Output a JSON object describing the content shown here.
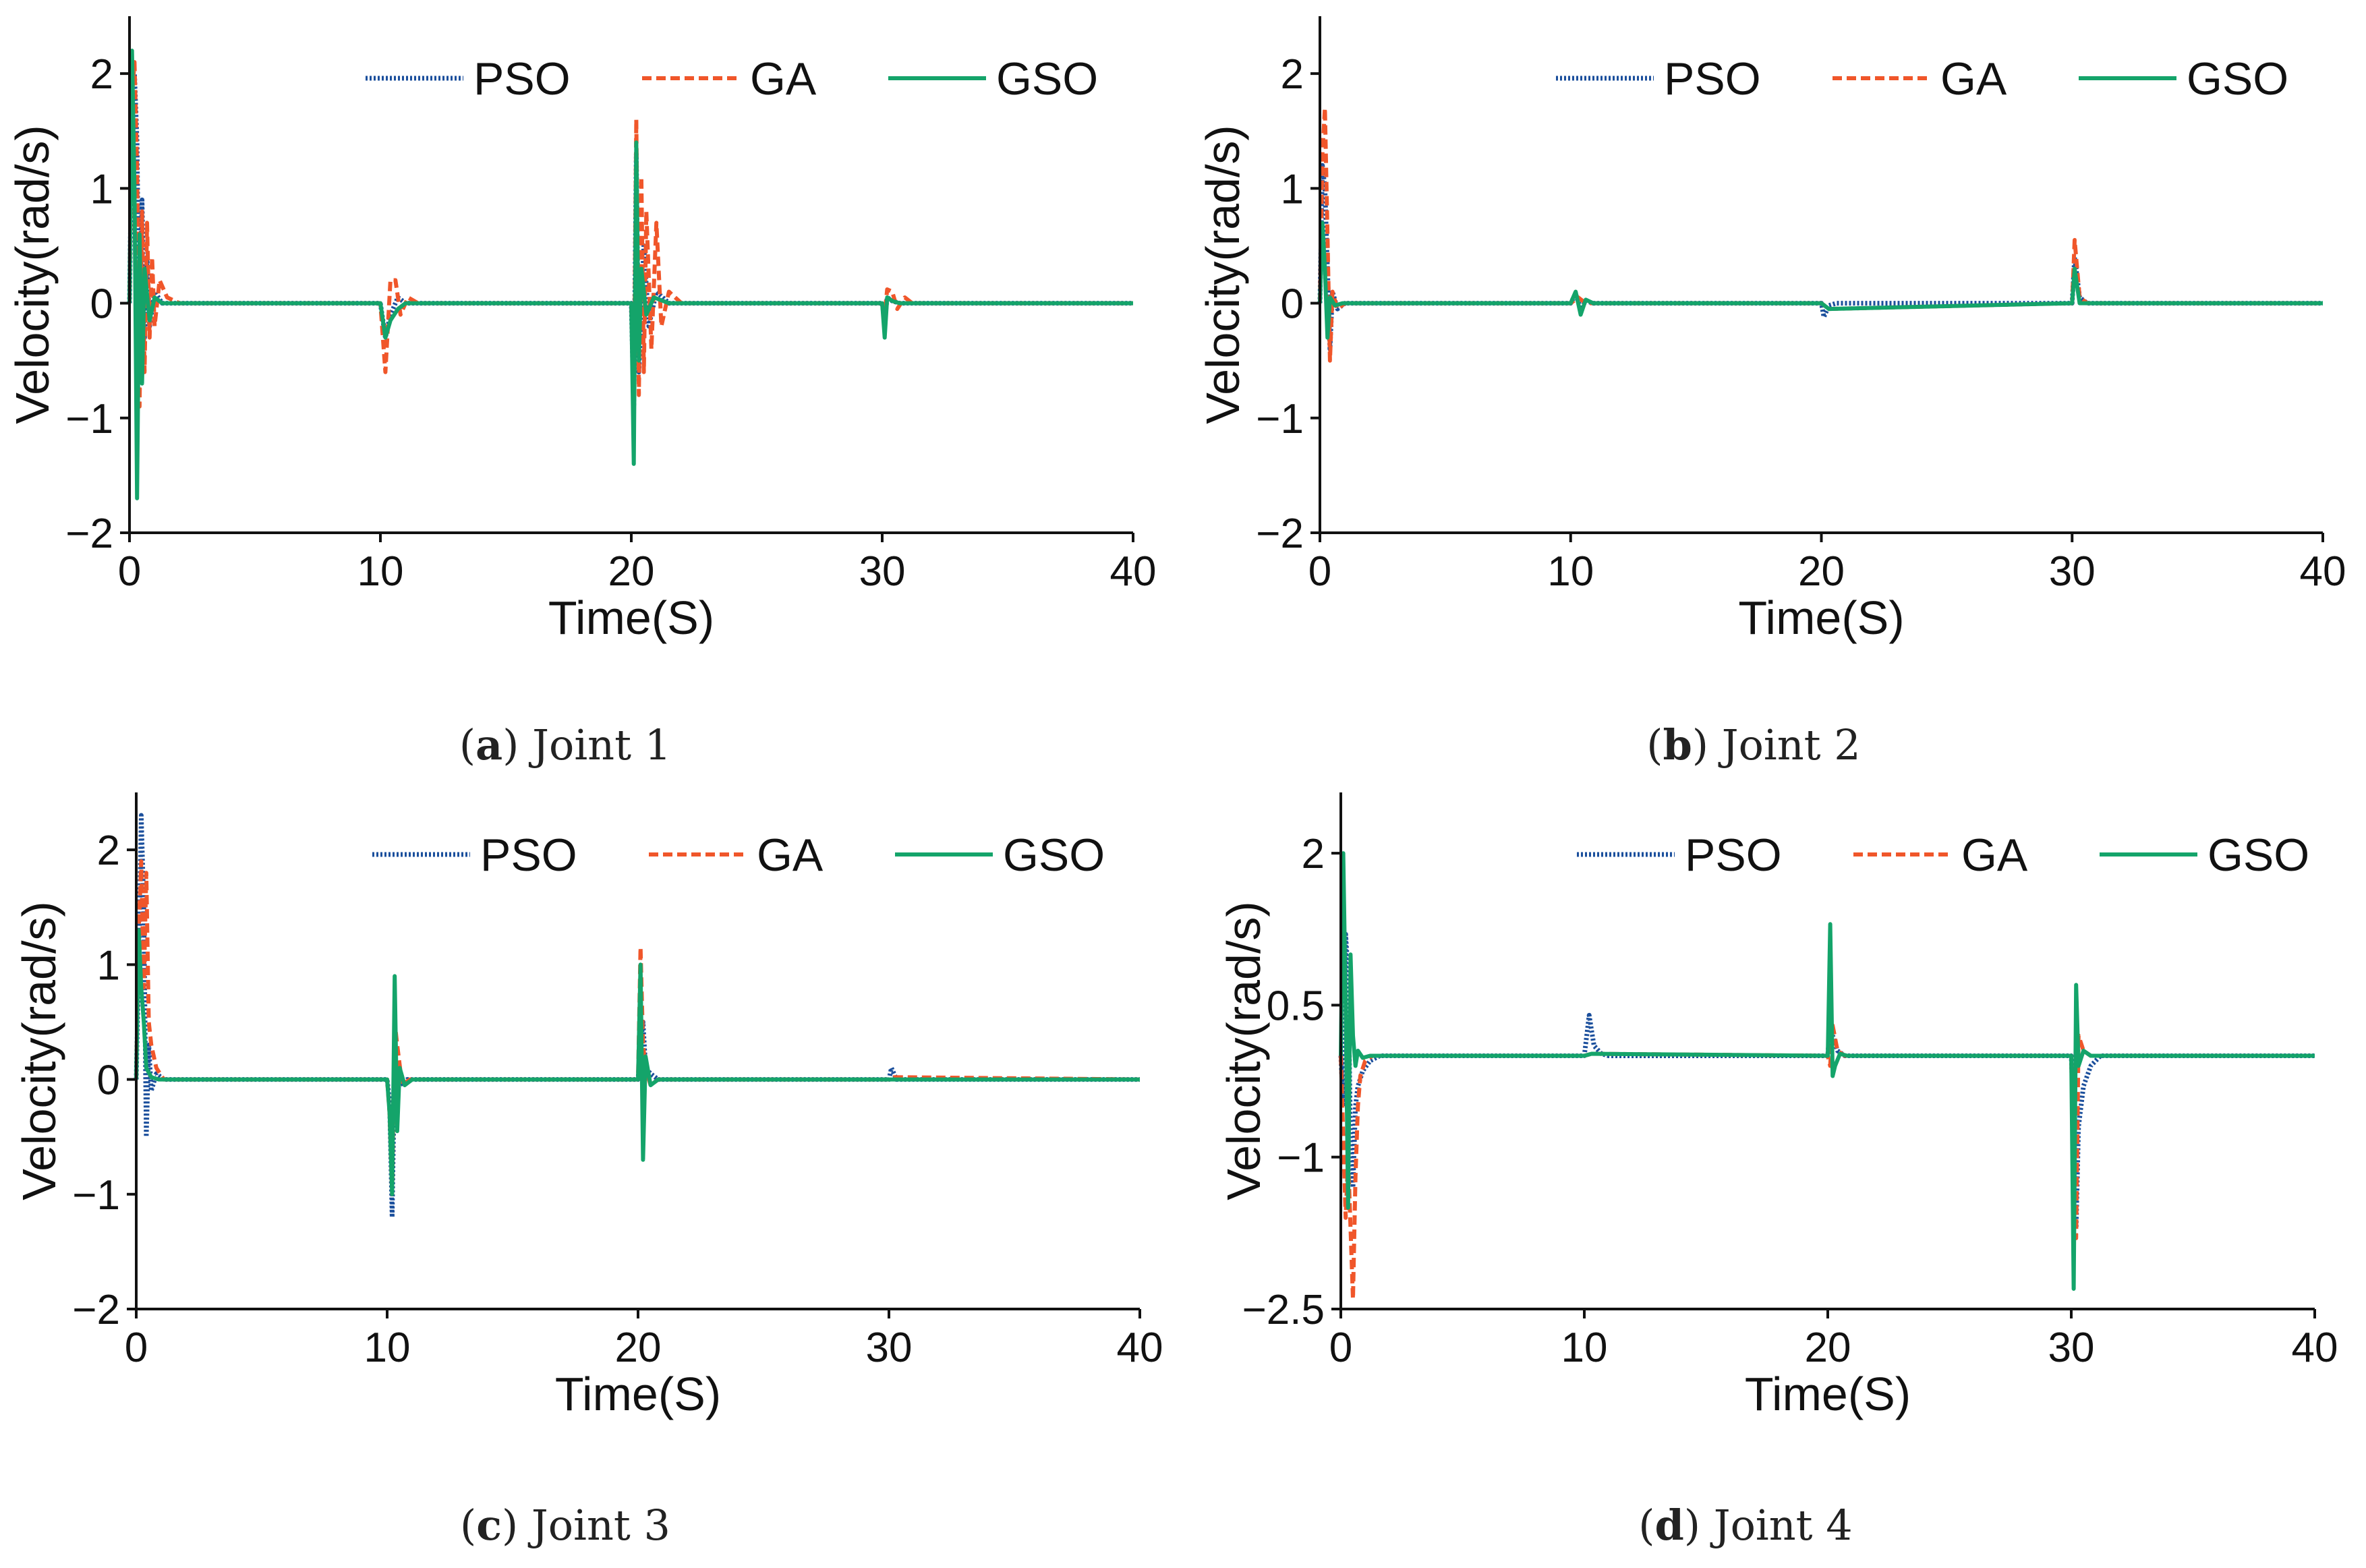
{
  "colors": {
    "PSO": "#1b4f9c",
    "GA": "#f0562a",
    "GSO": "#14a46a",
    "axis": "#111111"
  },
  "chart_data": [
    {
      "type": "line",
      "caption_letter": "a",
      "caption_text": " Joint 1",
      "xlabel": "Time(S)",
      "ylabel": "Velocity(rad/s)",
      "xlim": [
        0,
        40
      ],
      "ylim": [
        -2,
        2.5
      ],
      "xticks": [
        0,
        10,
        20,
        30,
        40
      ],
      "xtick_labels": [
        "0",
        "10",
        "20",
        "30",
        "40"
      ],
      "yticks": [
        -2,
        -1,
        0,
        1,
        2
      ],
      "ytick_labels": [
        "−2",
        "−1",
        "0",
        "1",
        "2"
      ],
      "legend": [
        "PSO",
        "GA",
        "GSO"
      ],
      "legend_position": "top",
      "series": [
        {
          "name": "PSO",
          "style": "dotted",
          "x": [
            0,
            0.1,
            0.2,
            0.3,
            0.4,
            0.5,
            0.6,
            0.7,
            0.8,
            1.0,
            1.3,
            2,
            10,
            10.2,
            10.4,
            10.7,
            11,
            20,
            20.1,
            20.2,
            20.3,
            20.5,
            20.7,
            21,
            21.5,
            30,
            30.1,
            30.2,
            30.4,
            30.7,
            40
          ],
          "y": [
            0,
            1.6,
            2.0,
            1.4,
            -0.6,
            0.9,
            -0.3,
            0.4,
            -0.2,
            0.1,
            0,
            0,
            0,
            -0.3,
            -0.1,
            0.05,
            0,
            0,
            -0.9,
            1.3,
            -0.6,
            0.5,
            -0.2,
            0.1,
            0,
            0,
            -0.15,
            0.05,
            0.02,
            0,
            0
          ]
        },
        {
          "name": "GA",
          "style": "dashed",
          "x": [
            0,
            0.1,
            0.2,
            0.3,
            0.4,
            0.5,
            0.6,
            0.7,
            0.8,
            0.9,
            1.0,
            1.2,
            1.5,
            2,
            10,
            10.2,
            10.4,
            10.6,
            10.8,
            11.1,
            11.5,
            20,
            20.1,
            20.2,
            20.3,
            20.4,
            20.5,
            20.6,
            20.8,
            21,
            21.2,
            21.5,
            22,
            30,
            30.1,
            30.2,
            30.4,
            30.6,
            30.9,
            31.2,
            40
          ],
          "y": [
            0,
            1.8,
            2.1,
            1.2,
            -0.9,
            0.8,
            -0.6,
            0.7,
            -0.3,
            0.4,
            -0.2,
            0.2,
            0.05,
            0,
            0,
            -0.6,
            0.2,
            0.2,
            -0.1,
            0.05,
            0,
            0,
            -1.0,
            1.6,
            -0.8,
            1.1,
            -0.6,
            0.8,
            -0.4,
            0.7,
            -0.2,
            0.1,
            0,
            0,
            -0.1,
            0.12,
            0.1,
            -0.05,
            0.05,
            0,
            0
          ]
        },
        {
          "name": "GSO",
          "style": "solid",
          "x": [
            0,
            0.1,
            0.2,
            0.3,
            0.4,
            0.5,
            0.6,
            0.8,
            1.0,
            1.3,
            2,
            10,
            10.2,
            10.4,
            10.7,
            11,
            20,
            20.1,
            20.2,
            20.3,
            20.4,
            20.6,
            20.9,
            21.5,
            30,
            30.1,
            30.2,
            30.4,
            30.7,
            40
          ],
          "y": [
            0,
            2.2,
            1.0,
            -1.7,
            0.6,
            -0.7,
            0.3,
            -0.15,
            0.05,
            0,
            0,
            0,
            -0.3,
            -0.15,
            -0.05,
            0,
            0,
            -1.4,
            1.4,
            -0.5,
            0.3,
            -0.1,
            0.05,
            0,
            0,
            -0.3,
            0.05,
            0.02,
            0,
            0
          ]
        }
      ]
    },
    {
      "type": "line",
      "caption_letter": "b",
      "caption_text": " Joint 2",
      "xlabel": "Time(S)",
      "ylabel": "Velocity(rad/s)",
      "xlim": [
        0,
        40
      ],
      "ylim": [
        -2,
        2.5
      ],
      "xticks": [
        0,
        10,
        20,
        30,
        40
      ],
      "xtick_labels": [
        "0",
        "10",
        "20",
        "30",
        "40"
      ],
      "yticks": [
        -2,
        -1,
        0,
        1,
        2
      ],
      "ytick_labels": [
        "−2",
        "−1",
        "0",
        "1",
        "2"
      ],
      "legend": [
        "PSO",
        "GA",
        "GSO"
      ],
      "legend_position": "top",
      "series": [
        {
          "name": "PSO",
          "style": "dotted",
          "x": [
            0,
            0.1,
            0.2,
            0.3,
            0.4,
            0.5,
            0.7,
            1.0,
            10,
            10.2,
            10.4,
            10.6,
            10.9,
            20,
            20.1,
            20.3,
            20.6,
            30,
            30.1,
            30.3,
            30.6,
            40
          ],
          "y": [
            0,
            1.2,
            1.0,
            0.3,
            -0.4,
            0.1,
            -0.05,
            0,
            0,
            0.08,
            -0.05,
            0.02,
            0,
            0,
            -0.12,
            -0.02,
            0,
            0,
            0.4,
            0.05,
            0,
            0
          ]
        },
        {
          "name": "GA",
          "style": "dashed",
          "x": [
            0,
            0.1,
            0.2,
            0.3,
            0.4,
            0.5,
            0.7,
            1.0,
            10,
            10.3,
            10.6,
            20,
            20.3,
            30,
            30.1,
            30.3,
            30.6,
            40
          ],
          "y": [
            0,
            1.3,
            1.7,
            0.6,
            -0.5,
            0.1,
            -0.05,
            0,
            0,
            0.05,
            0,
            0,
            -0.05,
            0,
            0.55,
            0.05,
            0,
            0
          ]
        },
        {
          "name": "GSO",
          "style": "solid",
          "x": [
            0,
            0.1,
            0.2,
            0.3,
            0.4,
            0.6,
            0.9,
            10,
            10.2,
            10.4,
            10.6,
            10.9,
            20,
            20.3,
            30,
            30.1,
            30.3,
            40
          ],
          "y": [
            0,
            0.7,
            0.3,
            -0.3,
            0.05,
            -0.02,
            0,
            0,
            0.1,
            -0.1,
            0.03,
            0,
            0,
            -0.05,
            0,
            0.3,
            0,
            0
          ]
        }
      ]
    },
    {
      "type": "line",
      "caption_letter": "c",
      "caption_text": " Joint 3",
      "xlabel": "Time(S)",
      "ylabel": "Velocity(rad/s)",
      "xlim": [
        0,
        40
      ],
      "ylim": [
        -2,
        2.5
      ],
      "xticks": [
        0,
        10,
        20,
        30,
        40
      ],
      "xtick_labels": [
        "0",
        "10",
        "20",
        "30",
        "40"
      ],
      "yticks": [
        -2,
        -1,
        0,
        1,
        2
      ],
      "ytick_labels": [
        "−2",
        "−1",
        "0",
        "1",
        "2"
      ],
      "legend": [
        "PSO",
        "GA",
        "GSO"
      ],
      "legend_position": "top",
      "series": [
        {
          "name": "PSO",
          "style": "dotted",
          "x": [
            0,
            0.1,
            0.2,
            0.3,
            0.4,
            0.5,
            0.6,
            0.8,
            1.1,
            10,
            10.1,
            10.2,
            10.3,
            10.5,
            10.8,
            20,
            20.1,
            20.2,
            20.3,
            20.5,
            20.8,
            30,
            30.1,
            30.3,
            40
          ],
          "y": [
            0,
            1.0,
            2.3,
            1.5,
            -0.5,
            0.3,
            -0.1,
            0.05,
            0,
            0,
            -0.2,
            -1.2,
            0.2,
            -0.05,
            0,
            0,
            0.3,
            0.5,
            0.1,
            0.05,
            0,
            0,
            0.1,
            0,
            0
          ]
        },
        {
          "name": "GA",
          "style": "dashed",
          "x": [
            0,
            0.1,
            0.2,
            0.3,
            0.4,
            0.5,
            0.6,
            0.8,
            1.1,
            10,
            10.1,
            10.2,
            10.3,
            10.4,
            10.6,
            10.9,
            20,
            20.1,
            20.2,
            20.3,
            20.5,
            20.8,
            30,
            30.2,
            40
          ],
          "y": [
            0,
            1.3,
            1.9,
            0.8,
            1.8,
            0.5,
            0.3,
            0.1,
            0,
            0,
            -0.3,
            -1.0,
            0.5,
            0.3,
            -0.05,
            0,
            0,
            1.15,
            0.3,
            0.1,
            -0.05,
            0,
            0,
            0.02,
            0
          ]
        },
        {
          "name": "GSO",
          "style": "solid",
          "x": [
            0,
            0.1,
            0.2,
            0.3,
            0.4,
            0.6,
            0.9,
            10,
            10.1,
            10.2,
            10.3,
            10.4,
            10.5,
            10.7,
            11,
            20,
            20.1,
            20.2,
            20.3,
            20.5,
            20.8,
            30,
            40
          ],
          "y": [
            0,
            1.3,
            0.8,
            0.5,
            0.1,
            0.02,
            0,
            0,
            -0.3,
            -1.0,
            0.9,
            -0.45,
            0.1,
            -0.05,
            0,
            0,
            1.0,
            -0.7,
            0.2,
            -0.05,
            0,
            0,
            0
          ]
        }
      ]
    },
    {
      "type": "line",
      "caption_letter": "d",
      "caption_text": " Joint 4",
      "xlabel": "Time(S)",
      "ylabel": "Velocity(rad/s)",
      "xlim": [
        0,
        40
      ],
      "ylim": [
        -2.5,
        2.6
      ],
      "xticks": [
        0,
        10,
        20,
        30,
        40
      ],
      "xtick_labels": [
        "0",
        "10",
        "20",
        "30",
        "40"
      ],
      "yticks": [
        -2.5,
        -1,
        0.5,
        2
      ],
      "ytick_labels": [
        "−2.5",
        "−1",
        "0.5",
        "2"
      ],
      "legend": [
        "PSO",
        "GA",
        "GSO"
      ],
      "legend_position": "top",
      "series": [
        {
          "name": "PSO",
          "style": "dotted",
          "x": [
            0,
            0.1,
            0.2,
            0.3,
            0.4,
            0.5,
            0.6,
            0.7,
            0.9,
            1.2,
            1.6,
            10,
            10.1,
            10.2,
            10.4,
            10.7,
            11,
            20,
            20.1,
            20.2,
            20.4,
            20.7,
            30,
            30.1,
            30.2,
            30.3,
            30.5,
            30.8,
            31.2,
            40
          ],
          "y": [
            0,
            -0.5,
            1.2,
            0.8,
            -0.8,
            -1.3,
            -0.5,
            -0.3,
            -0.15,
            -0.05,
            0,
            0,
            0.2,
            0.4,
            0.1,
            0.02,
            0,
            0,
            0.35,
            0.2,
            0.05,
            0,
            0,
            -0.6,
            -1.7,
            -0.7,
            -0.3,
            -0.1,
            0,
            0
          ]
        },
        {
          "name": "GA",
          "style": "dashed",
          "x": [
            0,
            0.1,
            0.2,
            0.3,
            0.4,
            0.5,
            0.6,
            0.7,
            0.8,
            1.0,
            1.3,
            10,
            10.3,
            20,
            20.1,
            20.2,
            20.4,
            20.7,
            30,
            30.1,
            30.2,
            30.3,
            30.5,
            30.8,
            40
          ],
          "y": [
            0,
            -0.8,
            -1.6,
            -1.0,
            -1.7,
            -2.4,
            -1.2,
            -0.5,
            -0.2,
            -0.05,
            0,
            0,
            0.02,
            0,
            -0.1,
            0.3,
            0.05,
            0,
            0,
            -1.3,
            -1.8,
            0.2,
            0.05,
            0,
            0
          ]
        },
        {
          "name": "GSO",
          "style": "solid",
          "x": [
            0,
            0.1,
            0.2,
            0.3,
            0.4,
            0.5,
            0.6,
            0.7,
            0.9,
            1.2,
            10,
            10.3,
            20,
            20.1,
            20.2,
            20.3,
            20.5,
            20.8,
            30,
            30.1,
            30.2,
            30.3,
            30.5,
            30.8,
            40
          ],
          "y": [
            0,
            2.0,
            0.5,
            -1.5,
            1.0,
            0.2,
            -0.1,
            0.05,
            -0.02,
            0,
            0,
            0.02,
            0,
            1.3,
            -0.2,
            -0.1,
            0.02,
            0,
            0,
            -2.3,
            0.7,
            -0.1,
            0.05,
            0,
            0
          ]
        }
      ]
    }
  ]
}
